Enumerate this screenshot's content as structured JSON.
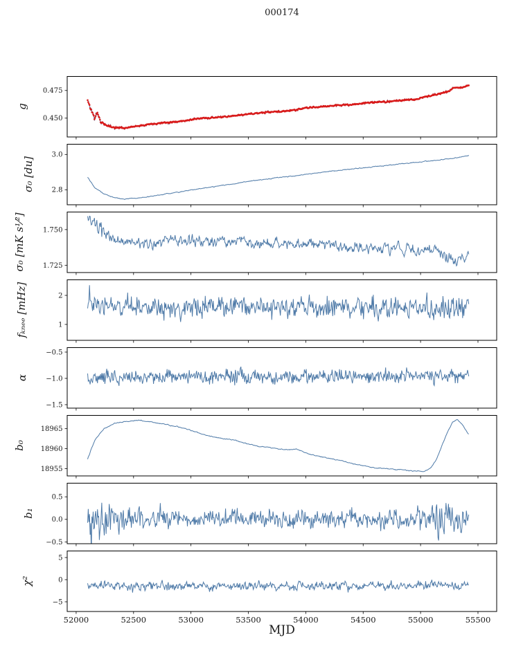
{
  "chart_data": {
    "type": "line",
    "title": "000174",
    "xlabel": "MJD",
    "legend": "none",
    "grid": false,
    "x": {
      "lim": [
        51922,
        55663
      ],
      "ticks": [
        52000,
        52500,
        53000,
        53500,
        54000,
        54500,
        55000,
        55500
      ],
      "tick_labels": [
        "52000",
        "52500",
        "53000",
        "53500",
        "54000",
        "54500",
        "55000",
        "55500"
      ]
    },
    "x_data_range": [
      52100,
      55420
    ],
    "n_points": 620,
    "colors": {
      "line": "#4d79a7",
      "marker": "#d81b1b",
      "axis": "#000000",
      "text": "#1a1a1a",
      "background": "#ffffff"
    },
    "panels": [
      {
        "name": "g",
        "ylabel": "g",
        "ylim": [
          0.433,
          0.488
        ],
        "yticks": [
          0.45,
          0.475
        ],
        "ytick_labels": [
          "0.450",
          "0.475"
        ],
        "marker": true,
        "noise": 0.0006,
        "smooth": 0.3,
        "seed": 11,
        "spike": [
          0.008,
          2.0
        ],
        "amp_profile": [
          [
            52100,
            3.0
          ],
          [
            52250,
            1.5
          ],
          [
            52450,
            1.0
          ],
          [
            55420,
            1.0
          ]
        ],
        "trend": [
          [
            52100,
            0.466
          ],
          [
            52130,
            0.4575
          ],
          [
            52160,
            0.45
          ],
          [
            52185,
            0.4555
          ],
          [
            52210,
            0.447
          ],
          [
            52260,
            0.4435
          ],
          [
            52340,
            0.4415
          ],
          [
            52430,
            0.4412
          ],
          [
            52520,
            0.4428
          ],
          [
            52650,
            0.4448
          ],
          [
            52800,
            0.4462
          ],
          [
            52950,
            0.4478
          ],
          [
            53080,
            0.4498
          ],
          [
            53200,
            0.4505
          ],
          [
            53320,
            0.4512
          ],
          [
            53430,
            0.453
          ],
          [
            53520,
            0.4538
          ],
          [
            53650,
            0.4552
          ],
          [
            53800,
            0.4562
          ],
          [
            53900,
            0.4572
          ],
          [
            54000,
            0.4592
          ],
          [
            54120,
            0.4602
          ],
          [
            54250,
            0.4615
          ],
          [
            54400,
            0.4622
          ],
          [
            54520,
            0.4638
          ],
          [
            54650,
            0.4645
          ],
          [
            54800,
            0.4658
          ],
          [
            54950,
            0.4668
          ],
          [
            55050,
            0.4695
          ],
          [
            55150,
            0.4718
          ],
          [
            55250,
            0.4742
          ],
          [
            55300,
            0.4782
          ],
          [
            55350,
            0.4772
          ],
          [
            55420,
            0.4798
          ]
        ]
      },
      {
        "name": "sigma0-du",
        "ylabel": "σ₀ [du]",
        "ylim": [
          2.715,
          3.06
        ],
        "yticks": [
          2.8,
          3.0
        ],
        "ytick_labels": [
          "2.8",
          "3.0"
        ],
        "marker": false,
        "noise": 0.002,
        "smooth": 0.5,
        "seed": 22,
        "trend": [
          [
            52100,
            2.872
          ],
          [
            52160,
            2.815
          ],
          [
            52240,
            2.778
          ],
          [
            52330,
            2.755
          ],
          [
            52420,
            2.748
          ],
          [
            52520,
            2.752
          ],
          [
            52650,
            2.762
          ],
          [
            52800,
            2.778
          ],
          [
            52950,
            2.793
          ],
          [
            53100,
            2.808
          ],
          [
            53250,
            2.822
          ],
          [
            53400,
            2.837
          ],
          [
            53550,
            2.851
          ],
          [
            53700,
            2.864
          ],
          [
            53850,
            2.875
          ],
          [
            54000,
            2.888
          ],
          [
            54150,
            2.899
          ],
          [
            54300,
            2.911
          ],
          [
            54450,
            2.921
          ],
          [
            54600,
            2.931
          ],
          [
            54750,
            2.941
          ],
          [
            54900,
            2.951
          ],
          [
            55050,
            2.961
          ],
          [
            55200,
            2.971
          ],
          [
            55320,
            2.981
          ],
          [
            55420,
            2.995
          ]
        ]
      },
      {
        "name": "sigma0-mK",
        "ylabel": "σ₀ [mK s¹⁄²]",
        "ylim": [
          1.72,
          1.7625
        ],
        "yticks": [
          1.725,
          1.75
        ],
        "ytick_labels": [
          "1.725",
          "1.750"
        ],
        "marker": false,
        "noise": 0.0035,
        "smooth": 0.45,
        "seed": 33,
        "amp_profile": [
          [
            52100,
            1.6
          ],
          [
            52350,
            1.0
          ],
          [
            55420,
            1.0
          ]
        ],
        "trend": [
          [
            52100,
            1.757
          ],
          [
            52180,
            1.751
          ],
          [
            52260,
            1.746
          ],
          [
            52340,
            1.743
          ],
          [
            52420,
            1.7415
          ],
          [
            52500,
            1.742
          ],
          [
            52580,
            1.7385
          ],
          [
            52700,
            1.7408
          ],
          [
            52850,
            1.742
          ],
          [
            53000,
            1.7412
          ],
          [
            53150,
            1.7428
          ],
          [
            53300,
            1.7415
          ],
          [
            53450,
            1.742
          ],
          [
            53600,
            1.7398
          ],
          [
            53750,
            1.741
          ],
          [
            53900,
            1.739
          ],
          [
            54050,
            1.74
          ],
          [
            54200,
            1.7402
          ],
          [
            54350,
            1.7378
          ],
          [
            54500,
            1.737
          ],
          [
            54650,
            1.7372
          ],
          [
            54800,
            1.7378
          ],
          [
            54950,
            1.7352
          ],
          [
            55100,
            1.7358
          ],
          [
            55200,
            1.7335
          ],
          [
            55300,
            1.729
          ],
          [
            55360,
            1.7308
          ],
          [
            55420,
            1.7298
          ]
        ]
      },
      {
        "name": "fknee",
        "ylabel": "fₖₙₑₑ [mHz]",
        "ylim": [
          0.452,
          2.548
        ],
        "yticks": [
          1,
          2
        ],
        "ytick_labels": [
          "1",
          "2"
        ],
        "marker": false,
        "noise": 0.35,
        "smooth": 0.2,
        "seed": 44,
        "spike": [
          0.02,
          1.6
        ],
        "trend": [
          [
            52100,
            1.7
          ],
          [
            52300,
            1.62
          ],
          [
            52700,
            1.58
          ],
          [
            53200,
            1.62
          ],
          [
            53800,
            1.6
          ],
          [
            54400,
            1.58
          ],
          [
            54900,
            1.57
          ],
          [
            55420,
            1.58
          ]
        ]
      },
      {
        "name": "alpha",
        "ylabel": "α",
        "ylim": [
          -1.566,
          -0.408
        ],
        "yticks": [
          -1.5,
          -1.0,
          -0.5
        ],
        "ytick_labels": [
          "−1.5",
          "−1.0",
          "−0.5"
        ],
        "marker": false,
        "noise": 0.13,
        "smooth": 0.2,
        "seed": 55,
        "spike": [
          0.015,
          1.9
        ],
        "trend": [
          [
            52100,
            -0.975
          ],
          [
            53000,
            -0.965
          ],
          [
            54000,
            -0.972
          ],
          [
            55420,
            -0.958
          ]
        ]
      },
      {
        "name": "b0",
        "ylabel": "b₀",
        "ylim": [
          18953.2,
          18968.4
        ],
        "yticks": [
          18955,
          18960,
          18965
        ],
        "ytick_labels": [
          "18955",
          "18960",
          "18965"
        ],
        "marker": false,
        "noise": 0.1,
        "smooth": 0.5,
        "seed": 66,
        "trend": [
          [
            52100,
            18957.5
          ],
          [
            52160,
            18962.0
          ],
          [
            52240,
            18965.0
          ],
          [
            52330,
            18966.3
          ],
          [
            52430,
            18966.8
          ],
          [
            52540,
            18967.1
          ],
          [
            52650,
            18966.7
          ],
          [
            52800,
            18966.0
          ],
          [
            52950,
            18965.0
          ],
          [
            53100,
            18963.6
          ],
          [
            53250,
            18962.6
          ],
          [
            53360,
            18962.3
          ],
          [
            53470,
            18961.4
          ],
          [
            53600,
            18960.5
          ],
          [
            53720,
            18960.2
          ],
          [
            53820,
            18959.7
          ],
          [
            53920,
            18959.9
          ],
          [
            54020,
            18958.7
          ],
          [
            54120,
            18958.1
          ],
          [
            54230,
            18957.4
          ],
          [
            54330,
            18956.9
          ],
          [
            54430,
            18956.1
          ],
          [
            54530,
            18955.6
          ],
          [
            54640,
            18955.1
          ],
          [
            54750,
            18954.9
          ],
          [
            54860,
            18954.7
          ],
          [
            54960,
            18954.4
          ],
          [
            55030,
            18954.3
          ],
          [
            55090,
            18955.2
          ],
          [
            55140,
            18957.5
          ],
          [
            55190,
            18961.0
          ],
          [
            55240,
            18964.5
          ],
          [
            55280,
            18966.6
          ],
          [
            55320,
            18967.3
          ],
          [
            55360,
            18966.2
          ],
          [
            55420,
            18963.6
          ]
        ]
      },
      {
        "name": "b1",
        "ylabel": "b₁",
        "ylim": [
          -0.54,
          0.81
        ],
        "yticks": [
          -0.5,
          0.0,
          0.5
        ],
        "ytick_labels": [
          "−0.5",
          "0.0",
          "0.5"
        ],
        "marker": false,
        "noise": 0.2,
        "smooth": 0.2,
        "seed": 77,
        "spike": [
          0.012,
          1.8
        ],
        "amp_profile": [
          [
            52100,
            2.6
          ],
          [
            52200,
            2.0
          ],
          [
            52350,
            1.5
          ],
          [
            52600,
            1.0
          ],
          [
            54900,
            1.0
          ],
          [
            55050,
            1.3
          ],
          [
            55150,
            2.2
          ],
          [
            55250,
            1.8
          ],
          [
            55350,
            1.5
          ],
          [
            55420,
            1.4
          ]
        ],
        "trend": [
          [
            52100,
            0.1
          ],
          [
            52250,
            0.02
          ],
          [
            52400,
            0.0
          ],
          [
            55420,
            0.0
          ]
        ]
      },
      {
        "name": "chi2",
        "ylabel": "χ²",
        "ylim": [
          -7.19,
          6.56
        ],
        "yticks": [
          -5,
          0,
          5
        ],
        "ytick_labels": [
          "−5",
          "0",
          "5"
        ],
        "marker": false,
        "noise": 0.9,
        "smooth": 0.25,
        "seed": 88,
        "spike": [
          0.02,
          2.0
        ],
        "trend": [
          [
            52100,
            -1.2
          ],
          [
            52600,
            -1.5
          ],
          [
            53400,
            -1.4
          ],
          [
            54200,
            -1.45
          ],
          [
            55000,
            -1.3
          ],
          [
            55420,
            -1.25
          ]
        ]
      }
    ]
  }
}
